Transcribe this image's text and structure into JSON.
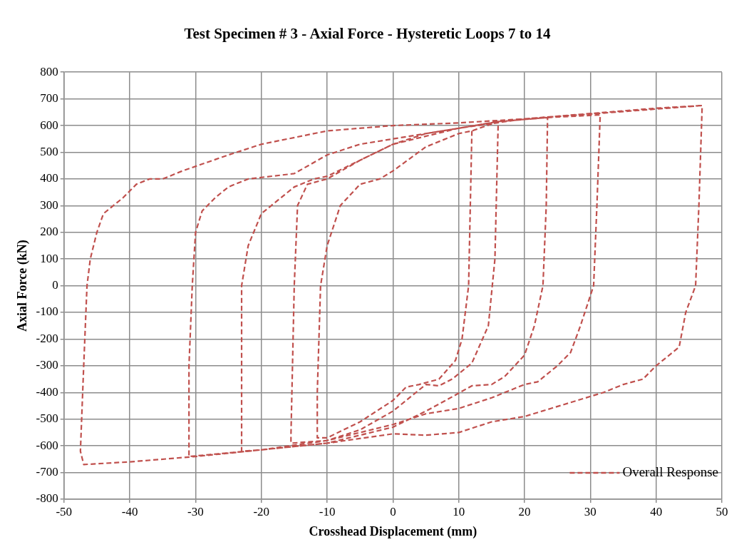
{
  "chart_data": {
    "type": "line",
    "title": "Test Specimen # 3 - Axial Force - Hysteretic Loops 7 to 14",
    "xlabel": "Crosshead Displacement (mm)",
    "ylabel": "Axial Force (kN)",
    "xlim": [
      -50,
      50
    ],
    "xticks": [
      -50,
      -40,
      -30,
      -20,
      -10,
      0,
      10,
      20,
      30,
      40,
      50
    ],
    "ylim": [
      -800,
      800
    ],
    "yticks": [
      -800,
      -700,
      -600,
      -500,
      -400,
      -300,
      -200,
      -100,
      0,
      100,
      200,
      300,
      400,
      500,
      600,
      700,
      800
    ],
    "grid": true,
    "legend": "bottom right",
    "marker": "none",
    "line_style": "dashed",
    "series": [
      {
        "name": "Overall Response",
        "color": "#c0504d",
        "x": [
          12,
          11.5,
          10.5,
          9.5,
          7,
          4,
          2,
          0,
          -5,
          -10,
          -11.5,
          -11.5,
          -11,
          -10,
          -8,
          -5,
          -2,
          0,
          5,
          10,
          12,
          16,
          15.5,
          14.5,
          12,
          9,
          7,
          5,
          0,
          -5,
          -10,
          -15.5,
          -15.5,
          -15,
          -14.5,
          -13,
          -10,
          -5,
          0,
          5,
          10,
          16,
          23.5,
          23.3,
          22.8,
          21.5,
          20,
          17,
          15,
          12,
          8,
          5,
          0,
          -10,
          -20,
          -23,
          -23,
          -23,
          -22,
          -20,
          -17,
          -15,
          -12,
          -10,
          -5,
          0,
          10,
          16,
          23.5,
          31.5,
          31,
          30.5,
          28.5,
          27,
          25,
          22,
          20,
          15,
          10,
          5,
          0,
          -10,
          -20,
          -31,
          -31,
          -31,
          -30.5,
          -30,
          -29,
          -27,
          -25,
          -22,
          -15,
          -10,
          -5,
          0,
          10,
          20,
          31,
          47,
          46.5,
          46,
          44.5,
          43.5,
          40,
          38,
          35,
          32,
          28,
          24,
          20,
          15,
          10,
          5,
          0,
          -10,
          -20,
          -30,
          -40,
          -47,
          -47.5,
          -47,
          -46.5,
          -46,
          -45,
          -44,
          -41,
          -39,
          -37,
          -35,
          -32,
          -25,
          -20,
          -10,
          0,
          10,
          20,
          30,
          40,
          47
        ],
        "values": [
          580,
          0,
          -200,
          -280,
          -350,
          -370,
          -380,
          -430,
          -510,
          -570,
          -570,
          -400,
          0,
          150,
          300,
          380,
          400,
          430,
          520,
          570,
          580,
          615,
          100,
          -150,
          -290,
          -350,
          -375,
          -370,
          -470,
          -540,
          -580,
          -590,
          -560,
          0,
          300,
          380,
          400,
          470,
          530,
          570,
          590,
          615,
          630,
          300,
          0,
          -150,
          -260,
          -340,
          -370,
          -375,
          -430,
          -470,
          -530,
          -590,
          -615,
          -620,
          -500,
          0,
          150,
          270,
          330,
          370,
          400,
          410,
          470,
          530,
          590,
          615,
          630,
          640,
          300,
          0,
          -150,
          -250,
          -300,
          -360,
          -370,
          -420,
          -460,
          -480,
          -520,
          -580,
          -615,
          -640,
          -500,
          -300,
          0,
          200,
          280,
          330,
          370,
          400,
          420,
          490,
          530,
          550,
          590,
          625,
          645,
          675,
          300,
          0,
          -100,
          -230,
          -300,
          -350,
          -370,
          -400,
          -430,
          -460,
          -490,
          -510,
          -550,
          -560,
          -555,
          -590,
          -615,
          -640,
          -660,
          -670,
          -620,
          -300,
          0,
          100,
          200,
          270,
          330,
          380,
          400,
          400,
          430,
          490,
          530,
          580,
          600,
          610,
          625,
          645,
          665,
          675
        ]
      }
    ]
  }
}
